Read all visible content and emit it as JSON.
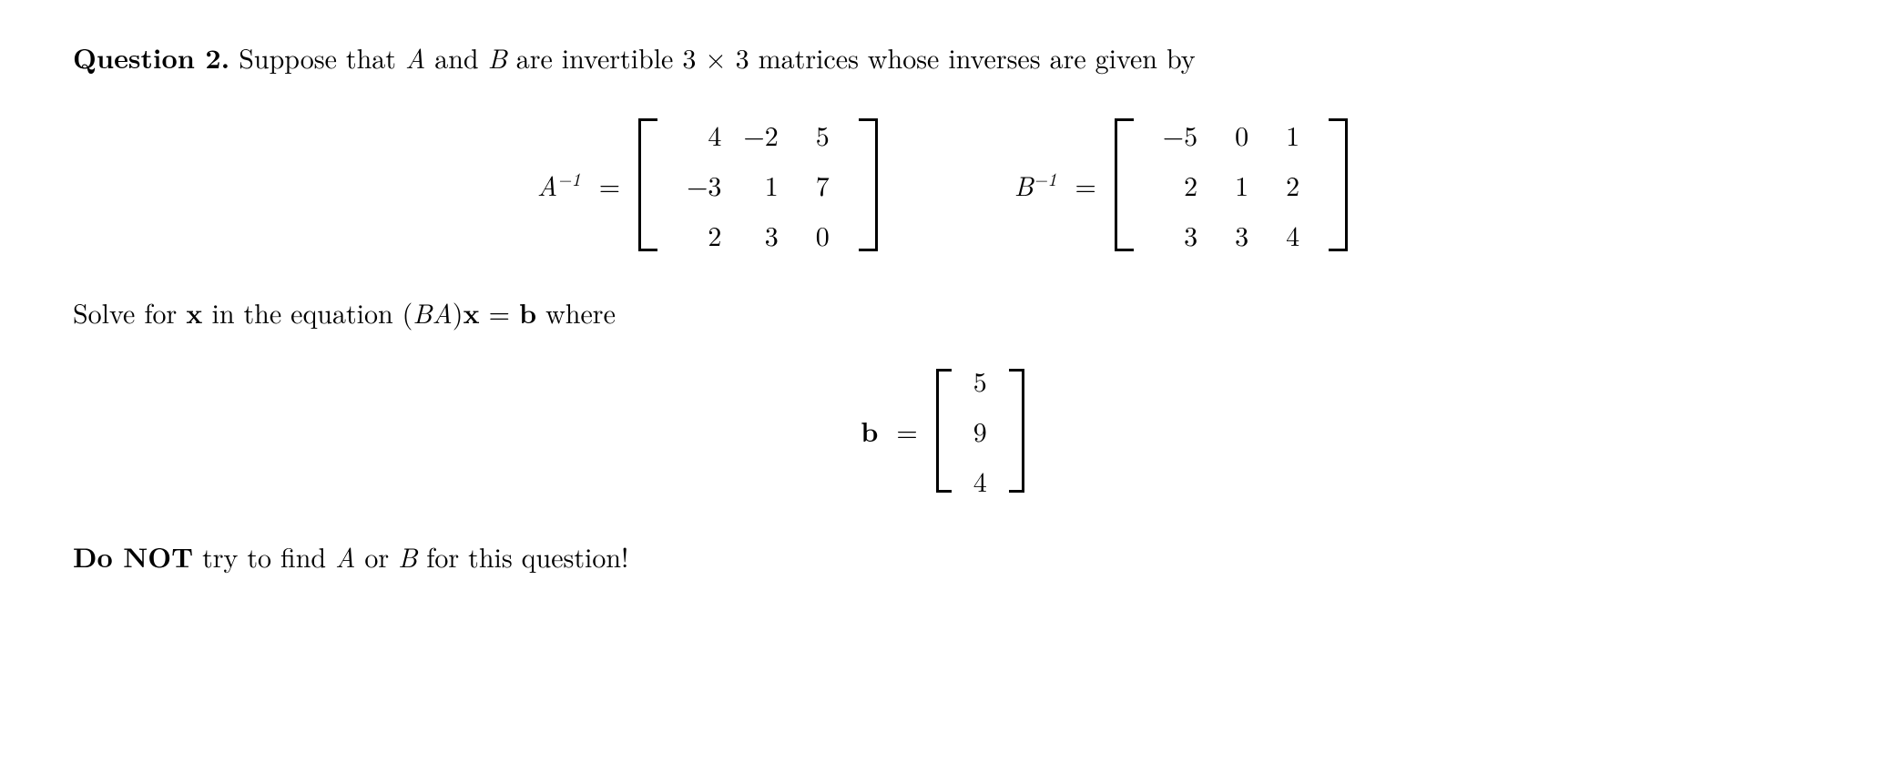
{
  "question": {
    "label": "Question 2.",
    "intro_prefix": "Suppose that ",
    "var_A": "A",
    "intro_and": " and ",
    "var_B": "B",
    "intro_suffix": " are invertible 3 × 3 matrices whose inverses are given by"
  },
  "matrices": {
    "A_inv": {
      "label_base": "A",
      "label_sup": "−1",
      "rows": [
        [
          "4",
          "−2",
          "5"
        ],
        [
          "−3",
          "1",
          "7"
        ],
        [
          "2",
          "3",
          "0"
        ]
      ]
    },
    "B_inv": {
      "label_base": "B",
      "label_sup": "−1",
      "rows": [
        [
          "−5",
          "0",
          "1"
        ],
        [
          "2",
          "1",
          "2"
        ],
        [
          "3",
          "3",
          "4"
        ]
      ]
    }
  },
  "solve_line": {
    "prefix": "Solve for ",
    "x": "x",
    "mid": " in the equation (",
    "BA": "BA",
    "close": ")",
    "x2": "x",
    "eq": " = ",
    "b": "b",
    "suffix": " where"
  },
  "b_vector": {
    "label": "b",
    "values": [
      "5",
      "9",
      "4"
    ]
  },
  "note": {
    "bold": "Do NOT",
    "mid1": " try to find ",
    "A": "A",
    "or": " or ",
    "B": "B",
    "suffix": " for this question!"
  },
  "style": {
    "text_color": "#000000",
    "background_color": "#ffffff",
    "font_size": 30
  }
}
